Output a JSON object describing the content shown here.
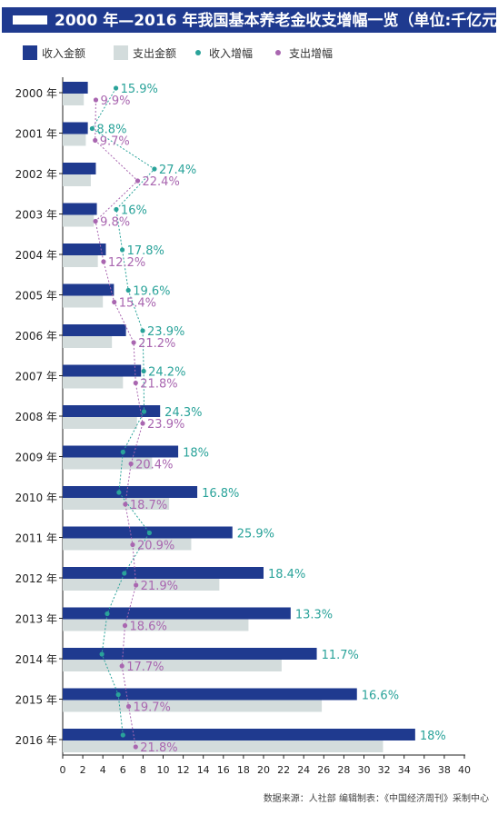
{
  "title": "2000 年—2016 年我国基本养老金收支增幅一览（单位:千亿元）",
  "source": "数据来源：人社部  编辑制表：《中国经济周刊》采制中心",
  "colors": {
    "title_bg": "#1f3a8f",
    "income_bar": "#1f3a8f",
    "expense_bar": "#d3dcdc",
    "income_growth": "#2aa39a",
    "expense_growth": "#a966b0"
  },
  "chart_data": {
    "type": "bar",
    "orientation": "horizontal",
    "categories": [
      "2000 年",
      "2001 年",
      "2002 年",
      "2003 年",
      "2004 年",
      "2005 年",
      "2006 年",
      "2007 年",
      "2008 年",
      "2009 年",
      "2010 年",
      "2011 年",
      "2012 年",
      "2013 年",
      "2014 年",
      "2015 年",
      "2016 年"
    ],
    "legend": [
      "收入金额",
      "支出金额",
      "收入增幅",
      "支出增幅"
    ],
    "xlim": [
      0,
      40
    ],
    "xticks": [
      "0",
      "2",
      "4",
      "6",
      "8",
      "10",
      "12",
      "14",
      "16",
      "18",
      "20",
      "22",
      "24",
      "26",
      "28",
      "30",
      "32",
      "34",
      "36",
      "38",
      "40"
    ],
    "grid": false,
    "legend_position": "top",
    "series": [
      {
        "name": "收入金额",
        "kind": "bar",
        "values": [
          2.5,
          2.5,
          3.3,
          3.4,
          4.3,
          5.1,
          6.3,
          7.8,
          9.7,
          11.5,
          13.4,
          16.9,
          20.0,
          22.7,
          25.3,
          29.3,
          35.1
        ]
      },
      {
        "name": "支出金额",
        "kind": "bar",
        "values": [
          2.1,
          2.3,
          2.8,
          3.1,
          3.5,
          4.0,
          4.9,
          6.0,
          7.4,
          8.9,
          10.6,
          12.8,
          15.6,
          18.5,
          21.8,
          25.8,
          31.9
        ]
      },
      {
        "name": "收入增幅",
        "kind": "line",
        "values": [
          15.9,
          8.8,
          27.4,
          16,
          17.8,
          19.6,
          23.9,
          24.2,
          24.3,
          18,
          16.8,
          25.9,
          18.4,
          13.3,
          11.7,
          16.6,
          18
        ],
        "labels": [
          "15.9%",
          "8.8%",
          "27.4%",
          "16%",
          "17.8%",
          "19.6%",
          "23.9%",
          "24.2%",
          "24.3%",
          "18%",
          "16.8%",
          "25.9%",
          "18.4%",
          "13.3%",
          "11.7%",
          "16.6%",
          "18%"
        ]
      },
      {
        "name": "支出增幅",
        "kind": "line",
        "values": [
          9.9,
          9.7,
          22.4,
          9.8,
          12.2,
          15.4,
          21.2,
          21.8,
          23.9,
          20.4,
          18.7,
          20.9,
          21.9,
          18.6,
          17.7,
          19.7,
          21.8
        ],
        "labels": [
          "9.9%",
          "9.7%",
          "22.4%",
          "9.8%",
          "12.2%",
          "15.4%",
          "21.2%",
          "21.8%",
          "23.9%",
          "20.4%",
          "18.7%",
          "20.9%",
          "21.9%",
          "18.6%",
          "17.7%",
          "19.7%",
          "21.8%"
        ]
      }
    ]
  }
}
